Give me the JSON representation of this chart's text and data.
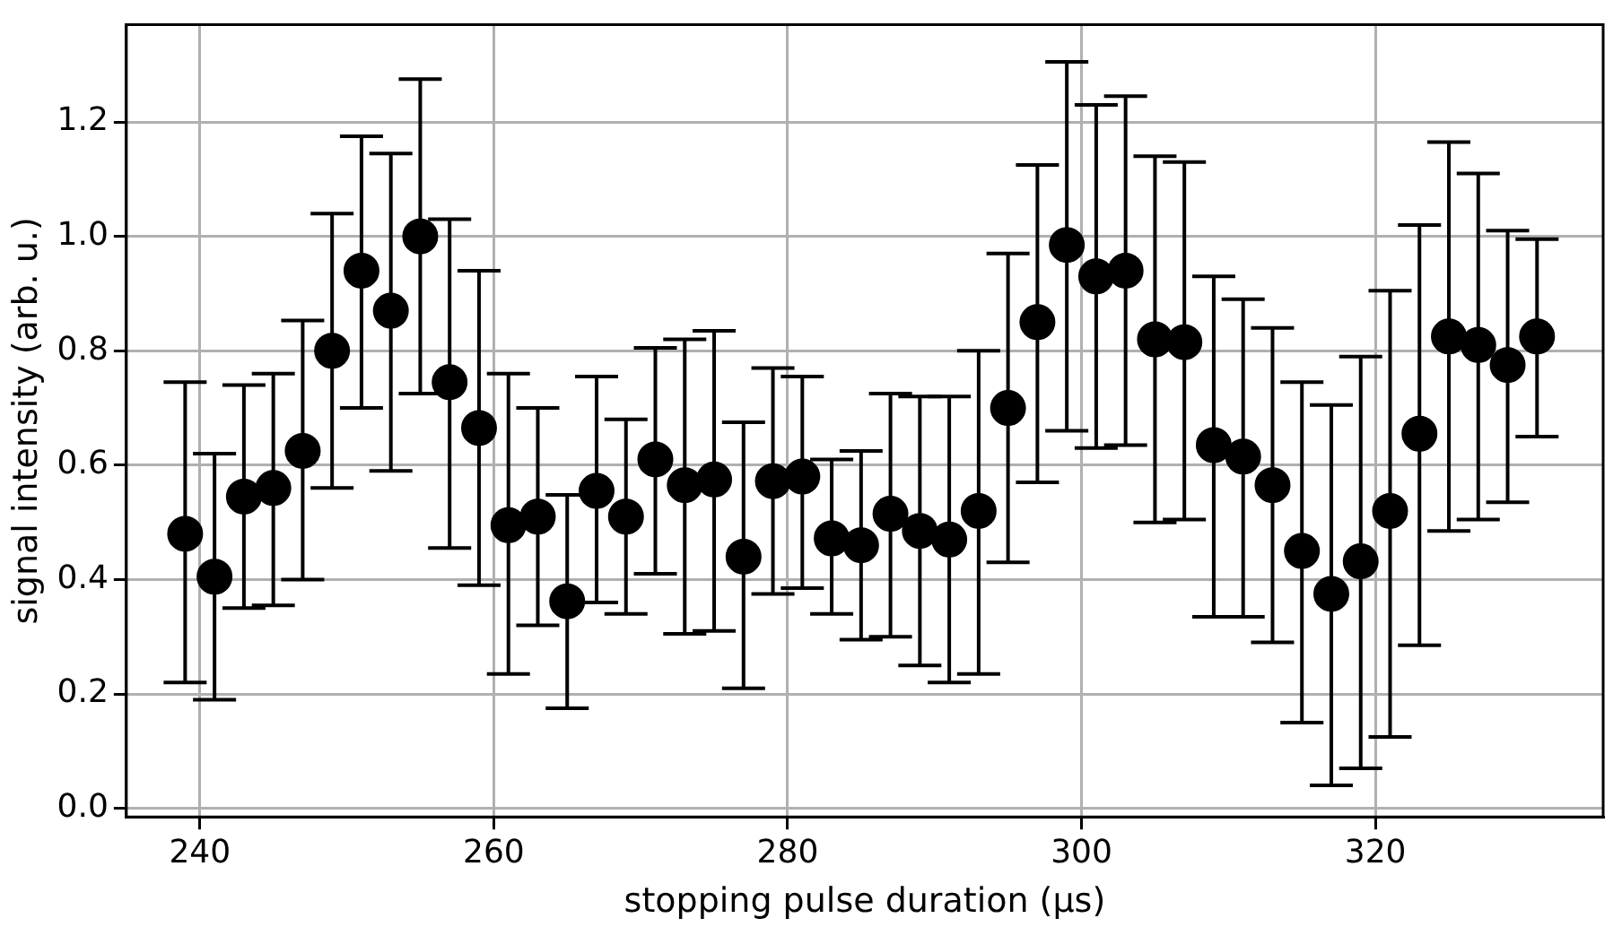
{
  "chart_data": {
    "type": "scatter",
    "xlabel": "stopping pulse duration (μs)",
    "ylabel": "signal intensity (arb. u.)",
    "x": [
      239,
      241,
      243,
      245,
      247,
      249,
      251,
      253,
      255,
      257,
      259,
      261,
      263,
      265,
      267,
      269,
      271,
      273,
      275,
      277,
      279,
      281,
      283,
      285,
      287,
      289,
      291,
      293,
      295,
      297,
      299,
      301,
      303,
      305,
      307,
      309,
      311,
      313,
      315,
      317,
      319,
      321,
      323,
      325,
      327,
      329,
      331
    ],
    "series": [
      {
        "color": "#000000",
        "values": [
          0.48,
          0.405,
          0.545,
          0.56,
          0.625,
          0.8,
          0.94,
          0.87,
          1.0,
          0.745,
          0.665,
          0.495,
          0.51,
          0.362,
          0.555,
          0.51,
          0.61,
          0.565,
          0.575,
          0.44,
          0.572,
          0.58,
          0.472,
          0.46,
          0.515,
          0.485,
          0.47,
          0.52,
          0.7,
          0.85,
          0.985,
          0.93,
          0.94,
          0.82,
          0.815,
          0.635,
          0.615,
          0.565,
          0.45,
          0.375,
          0.432,
          0.52,
          0.655,
          0.825,
          0.81,
          0.775,
          0.825
        ],
        "errors": [
          [
            0.22,
            0.745
          ],
          [
            0.19,
            0.62
          ],
          [
            0.35,
            0.74
          ],
          [
            0.355,
            0.76
          ],
          [
            0.4,
            0.853
          ],
          [
            0.56,
            1.04
          ],
          [
            0.7,
            1.175
          ],
          [
            0.59,
            1.145
          ],
          [
            0.725,
            1.275
          ],
          [
            0.455,
            1.03
          ],
          [
            0.39,
            0.94
          ],
          [
            0.235,
            0.76
          ],
          [
            0.32,
            0.7
          ],
          [
            0.175,
            0.548
          ],
          [
            0.36,
            0.755
          ],
          [
            0.34,
            0.68
          ],
          [
            0.41,
            0.805
          ],
          [
            0.305,
            0.82
          ],
          [
            0.31,
            0.835
          ],
          [
            0.21,
            0.675
          ],
          [
            0.375,
            0.77
          ],
          [
            0.385,
            0.755
          ],
          [
            0.34,
            0.61
          ],
          [
            0.295,
            0.625
          ],
          [
            0.3,
            0.725
          ],
          [
            0.25,
            0.72
          ],
          [
            0.22,
            0.72
          ],
          [
            0.235,
            0.8
          ],
          [
            0.43,
            0.97
          ],
          [
            0.57,
            1.125
          ],
          [
            0.66,
            1.305
          ],
          [
            0.63,
            1.23
          ],
          [
            0.635,
            1.245
          ],
          [
            0.5,
            1.14
          ],
          [
            0.505,
            1.13
          ],
          [
            0.335,
            0.93
          ],
          [
            0.335,
            0.89
          ],
          [
            0.29,
            0.84
          ],
          [
            0.15,
            0.745
          ],
          [
            0.04,
            0.705
          ],
          [
            0.07,
            0.79
          ],
          [
            0.125,
            0.905
          ],
          [
            0.285,
            1.02
          ],
          [
            0.485,
            1.165
          ],
          [
            0.505,
            1.11
          ],
          [
            0.535,
            1.01
          ],
          [
            0.65,
            0.995
          ]
        ]
      }
    ],
    "xlim": [
      235,
      335.5
    ],
    "ylim": [
      -0.015,
      1.37
    ],
    "xticks": [
      240,
      260,
      280,
      300,
      320
    ],
    "yticks": [
      {
        "value": 0,
        "label": "0.0"
      },
      {
        "value": 0.2,
        "label": "0.2"
      },
      {
        "value": 0.4,
        "label": "0.4"
      },
      {
        "value": 0.6,
        "label": "0.6"
      },
      {
        "value": 0.8,
        "label": "0.8"
      },
      {
        "value": 1.0,
        "label": "1.0"
      },
      {
        "value": 1.2,
        "label": "1.2"
      }
    ],
    "grid": true,
    "marker": "circle",
    "legend": false
  }
}
